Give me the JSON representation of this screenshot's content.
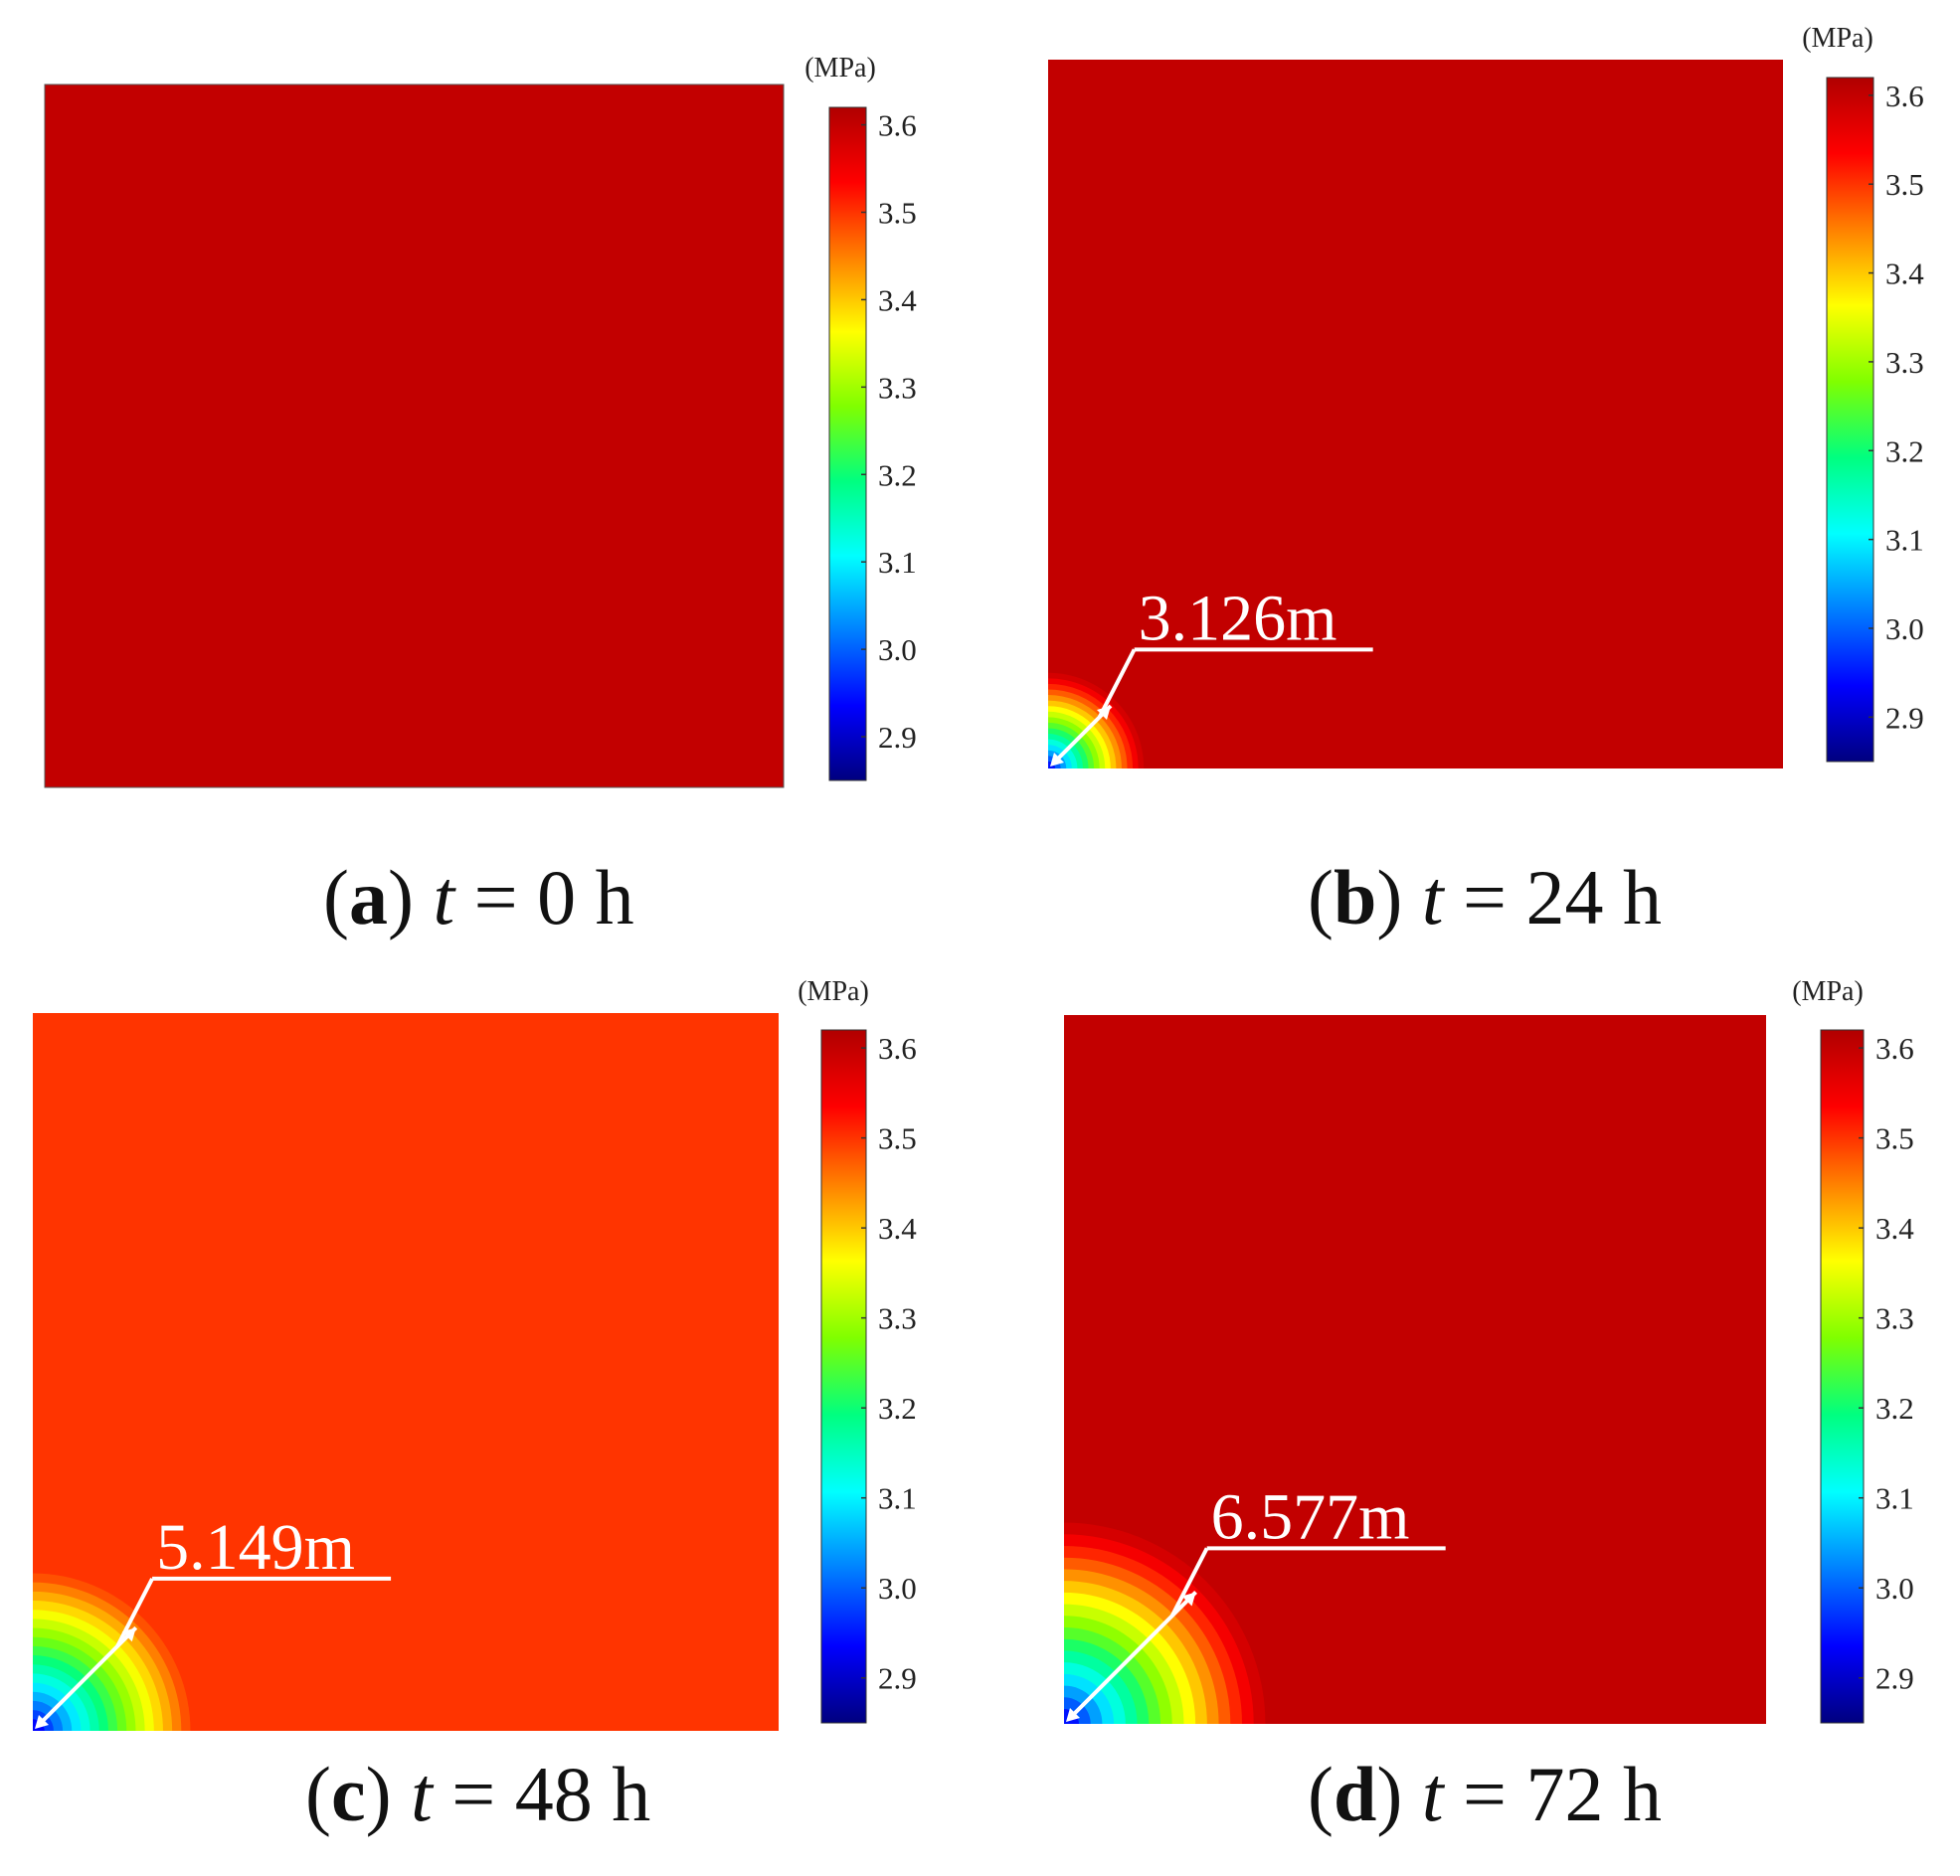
{
  "colormap": {
    "stops": [
      "#00007f",
      "#0000ff",
      "#0080ff",
      "#00ffff",
      "#00ff80",
      "#80ff00",
      "#ffff00",
      "#ff8000",
      "#ff0000",
      "#b00000"
    ]
  },
  "chart_data": [
    {
      "type": "heatmap",
      "panel_letter": "a",
      "time_symbol": "t",
      "time_value": "= 0 h",
      "colorbar": {
        "unit": "(MPa)",
        "ticks": [
          "3.6",
          "3.5",
          "3.4",
          "3.3",
          "3.2",
          "3.1",
          "3.0",
          "2.9"
        ],
        "range": [
          2.85,
          3.62
        ]
      },
      "background_value": 3.6,
      "pressure_front_radius": null,
      "radius_label": ""
    },
    {
      "type": "heatmap",
      "panel_letter": "b",
      "time_symbol": "t",
      "time_value": "= 24 h",
      "colorbar": {
        "unit": "(MPa)",
        "ticks": [
          "3.6",
          "3.5",
          "3.4",
          "3.3",
          "3.2",
          "3.1",
          "3.0",
          "2.9"
        ],
        "range": [
          2.85,
          3.62
        ]
      },
      "background_value": 3.6,
      "pressure_front_radius": 3.126,
      "radius_label": "3.126m"
    },
    {
      "type": "heatmap",
      "panel_letter": "c",
      "time_symbol": "t",
      "time_value": "= 48 h",
      "colorbar": {
        "unit": "(MPa)",
        "ticks": [
          "3.6",
          "3.5",
          "3.4",
          "3.3",
          "3.2",
          "3.1",
          "3.0",
          "2.9"
        ],
        "range": [
          2.85,
          3.62
        ]
      },
      "background_value": 3.5,
      "pressure_front_radius": 5.149,
      "radius_label": "5.149m"
    },
    {
      "type": "heatmap",
      "panel_letter": "d",
      "time_symbol": "t",
      "time_value": "= 72 h",
      "colorbar": {
        "unit": "(MPa)",
        "ticks": [
          "3.6",
          "3.5",
          "3.4",
          "3.3",
          "3.2",
          "3.1",
          "3.0",
          "2.9"
        ],
        "range": [
          2.85,
          3.62
        ]
      },
      "background_value": 3.6,
      "pressure_front_radius": 6.577,
      "radius_label": "6.577m"
    }
  ]
}
